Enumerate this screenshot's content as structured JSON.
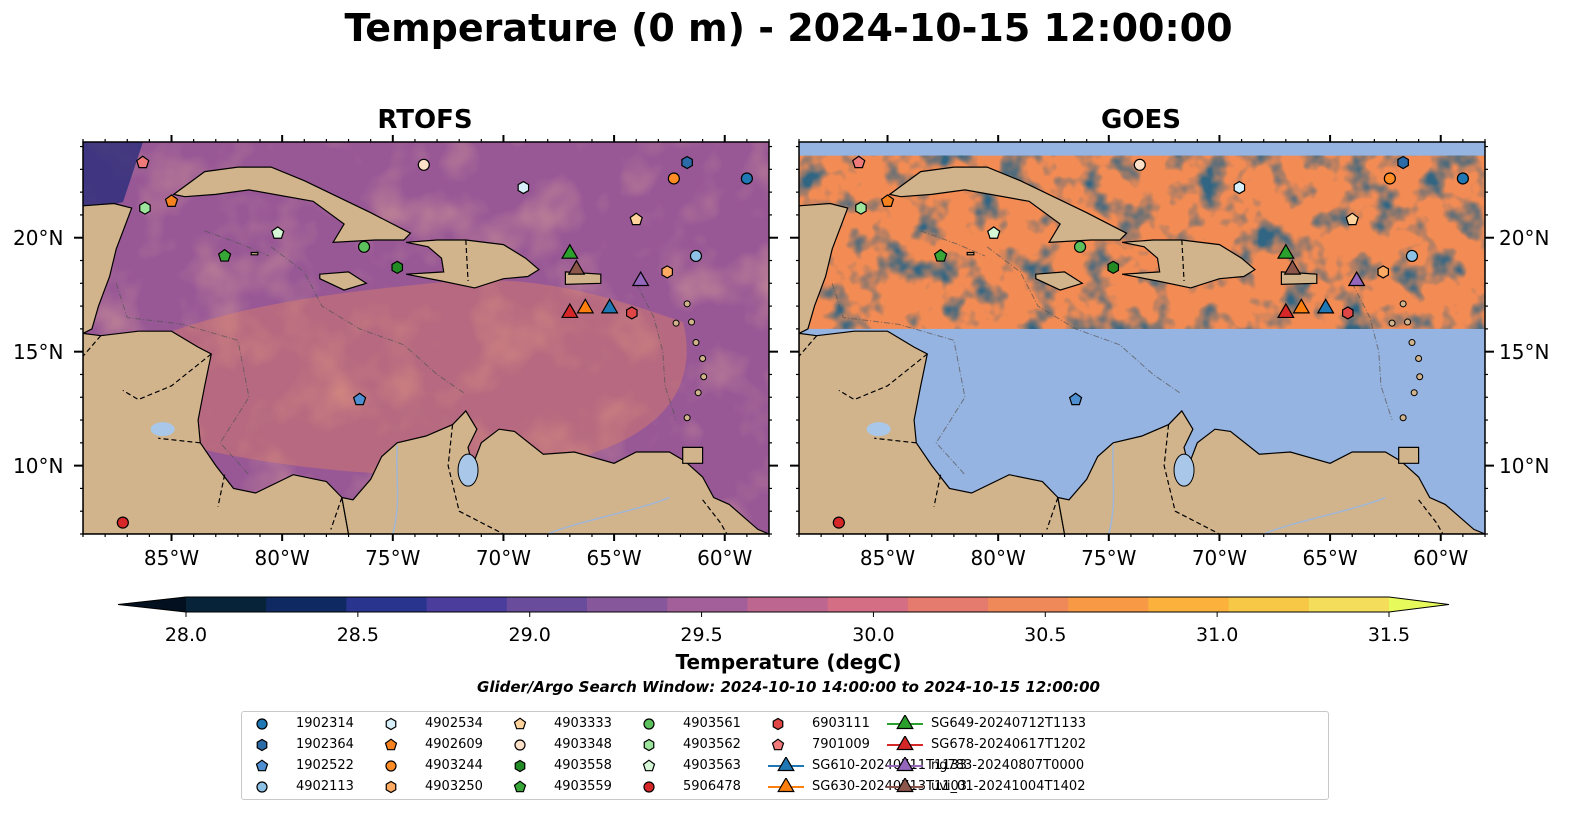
{
  "figure": {
    "title": "Temperature (0 m) - 2024-10-15 12:00:00",
    "subtitle": "Glider/Argo Search Window: 2024-10-10 14:00:00 to 2024-10-15 12:00:00"
  },
  "panels": [
    {
      "id": "rtofs",
      "title": "RTOFS"
    },
    {
      "id": "goes",
      "title": "GOES"
    }
  ],
  "axes": {
    "lon_labels": [
      "85°W",
      "80°W",
      "75°W",
      "70°W",
      "65°W",
      "60°W"
    ],
    "lat_labels": [
      "20°N",
      "15°N",
      "10°N"
    ],
    "lon_values": [
      -85,
      -80,
      -75,
      -70,
      -65,
      -60
    ],
    "lat_values": [
      20,
      15,
      10
    ],
    "lon_range": [
      -89,
      -58
    ],
    "lat_range": [
      7,
      24.2
    ]
  },
  "colorbar": {
    "label": "Temperature (degC)",
    "ticks": [
      "28.0",
      "28.5",
      "29.0",
      "29.5",
      "30.0",
      "30.5",
      "31.0",
      "31.5"
    ],
    "range": [
      28.0,
      31.5
    ],
    "extend": "both",
    "colors": [
      "#06233a",
      "#0f2a63",
      "#29348f",
      "#4a3d9c",
      "#6a4c9c",
      "#87579b",
      "#a25f99",
      "#bc6690",
      "#d36e84",
      "#e57a6f",
      "#f0895a",
      "#f89a45",
      "#fbb13c",
      "#f6c846",
      "#f3dd5a"
    ],
    "over_color": "#e6fa5c",
    "under_color": "#021020"
  },
  "colors": {
    "land": "#d2b48c",
    "rtofs_ocean": "#b06493",
    "goes_nodata": "#96b4e1",
    "goes_cloud": "#08223a",
    "goes_warm": "#f28b54"
  },
  "legend": {
    "items": [
      {
        "label": "1902314",
        "marker": "circle",
        "color": "#1f77b4"
      },
      {
        "label": "1902364",
        "marker": "hexagon",
        "color": "#2b6ca8"
      },
      {
        "label": "1902522",
        "marker": "pentagon",
        "color": "#4e8fd1"
      },
      {
        "label": "4902113",
        "marker": "circle",
        "color": "#8ec1e6"
      },
      {
        "label": "4902534",
        "marker": "hexagon",
        "color": "#d7eff8"
      },
      {
        "label": "4902609",
        "marker": "pentagon",
        "color": "#f5821f"
      },
      {
        "label": "4903244",
        "marker": "circle",
        "color": "#ff8c24"
      },
      {
        "label": "4903250",
        "marker": "hexagon",
        "color": "#ffab63"
      },
      {
        "label": "4903333",
        "marker": "pentagon",
        "color": "#ffd39b"
      },
      {
        "label": "4903348",
        "marker": "circle",
        "color": "#fde0c8"
      },
      {
        "label": "4903558",
        "marker": "hexagon",
        "color": "#238b23"
      },
      {
        "label": "4903559",
        "marker": "pentagon",
        "color": "#37a637"
      },
      {
        "label": "4903561",
        "marker": "circle",
        "color": "#5cc15c"
      },
      {
        "label": "4903562",
        "marker": "hexagon",
        "color": "#9de49d"
      },
      {
        "label": "4903563",
        "marker": "pentagon",
        "color": "#d6f7d6"
      },
      {
        "label": "5906478",
        "marker": "circle",
        "color": "#d62728"
      },
      {
        "label": "6903111",
        "marker": "hexagon",
        "color": "#e04646"
      },
      {
        "label": "7901009",
        "marker": "pentagon",
        "color": "#f07a7a"
      },
      {
        "label": "SG610-20240711T1133",
        "marker": "triangle",
        "color": "#1f77b4"
      },
      {
        "label": "SG630-20240713T1103",
        "marker": "triangle",
        "color": "#ff7f0e"
      },
      {
        "label": "SG649-20240712T1133",
        "marker": "triangle",
        "color": "#2ca02c"
      },
      {
        "label": "SG678-20240617T1202",
        "marker": "triangle",
        "color": "#d62728"
      },
      {
        "label": "ng783-20240807T0000",
        "marker": "triangle",
        "color": "#9467bd"
      },
      {
        "label": "uvi_01-20241004T1402",
        "marker": "triangle",
        "color": "#8c564b"
      }
    ]
  },
  "chart_data": {
    "type": "scatter",
    "title": "Temperature (0 m) - 2024-10-15 12:00:00",
    "xlabel": "",
    "ylabel": "",
    "xlim": [
      -89,
      -58
    ],
    "ylim": [
      7,
      24.2
    ],
    "series": [
      {
        "name": "1902314",
        "x": [
          -59.0
        ],
        "y": [
          22.6
        ]
      },
      {
        "name": "1902364",
        "x": [
          -61.7
        ],
        "y": [
          23.3
        ]
      },
      {
        "name": "1902522",
        "x": [
          -76.5
        ],
        "y": [
          12.9
        ]
      },
      {
        "name": "4902113",
        "x": [
          -61.3
        ],
        "y": [
          19.2
        ]
      },
      {
        "name": "4902534",
        "x": [
          -69.1
        ],
        "y": [
          22.2
        ]
      },
      {
        "name": "4902609",
        "x": [
          -85.0
        ],
        "y": [
          21.6
        ]
      },
      {
        "name": "4903244",
        "x": [
          -62.3
        ],
        "y": [
          22.6
        ]
      },
      {
        "name": "4903250",
        "x": [
          -62.6
        ],
        "y": [
          18.5
        ]
      },
      {
        "name": "4903333",
        "x": [
          -64.0
        ],
        "y": [
          20.8
        ]
      },
      {
        "name": "4903348",
        "x": [
          -73.6
        ],
        "y": [
          23.2
        ]
      },
      {
        "name": "4903558",
        "x": [
          -74.8
        ],
        "y": [
          18.7
        ]
      },
      {
        "name": "4903559",
        "x": [
          -82.6
        ],
        "y": [
          19.2
        ]
      },
      {
        "name": "4903561",
        "x": [
          -76.3
        ],
        "y": [
          19.6
        ]
      },
      {
        "name": "4903562",
        "x": [
          -86.2
        ],
        "y": [
          21.3
        ]
      },
      {
        "name": "4903563",
        "x": [
          -80.2
        ],
        "y": [
          20.2
        ]
      },
      {
        "name": "5906478",
        "x": [
          -87.2
        ],
        "y": [
          7.5
        ]
      },
      {
        "name": "6903111",
        "x": [
          -64.2
        ],
        "y": [
          16.7
        ]
      },
      {
        "name": "7901009",
        "x": [
          -86.3
        ],
        "y": [
          23.3
        ]
      },
      {
        "name": "SG610-20240711T1133",
        "x": [
          -65.2
        ],
        "y": [
          16.9
        ]
      },
      {
        "name": "SG630-20240713T1103",
        "x": [
          -66.3
        ],
        "y": [
          16.9
        ]
      },
      {
        "name": "SG649-20240712T1133",
        "x": [
          -67.0
        ],
        "y": [
          19.3
        ]
      },
      {
        "name": "SG678-20240617T1202",
        "x": [
          -67.0
        ],
        "y": [
          16.7
        ]
      },
      {
        "name": "ng783-20240807T0000",
        "x": [
          -63.8
        ],
        "y": [
          18.1
        ]
      },
      {
        "name": "uvi_01-20241004T1402",
        "x": [
          -66.7
        ],
        "y": [
          18.6
        ]
      }
    ],
    "goes_valid_lat_range": [
      16.0,
      23.6
    ]
  }
}
